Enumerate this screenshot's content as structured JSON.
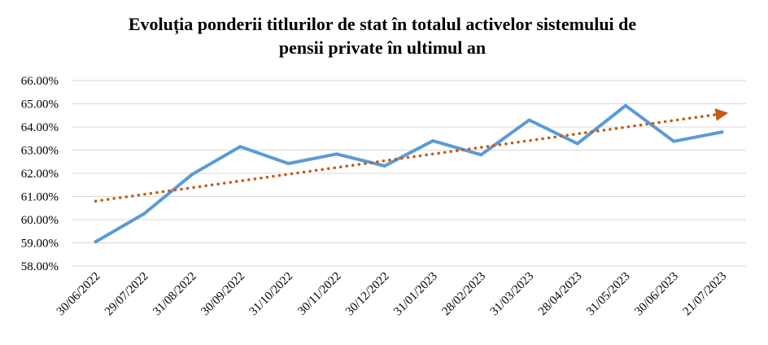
{
  "chart_data": {
    "type": "line",
    "title": "Evoluția ponderii titlurilor de stat în totalul activelor sistemului de\npensii private în ultimul an",
    "xlabel": "",
    "ylabel": "",
    "categories": [
      "30/06/2022",
      "29/07/2022",
      "31/08/2022",
      "30/09/2022",
      "31/10/2022",
      "30/11/2022",
      "30/12/2022",
      "31/01/2023",
      "28/02/2023",
      "31/03/2023",
      "28/04/2023",
      "31/05/2023",
      "30/06/2023",
      "21/07/2023"
    ],
    "series": [
      {
        "values": [
          59.05,
          60.25,
          61.95,
          63.15,
          62.42,
          62.83,
          62.32,
          63.4,
          62.8,
          64.3,
          63.28,
          64.92,
          63.38,
          63.78
        ],
        "color": "#5b9bd5",
        "style": "solid"
      },
      {
        "values": [
          60.8,
          61.09,
          61.38,
          61.67,
          61.96,
          62.25,
          62.54,
          62.83,
          63.12,
          63.41,
          63.7,
          63.99,
          64.28,
          64.57
        ],
        "color": "#c55a11",
        "style": "dotted-trendline-with-arrow"
      }
    ],
    "ylim": [
      58,
      66
    ],
    "y_ticks": [
      "58.00%",
      "59.00%",
      "60.00%",
      "61.00%",
      "62.00%",
      "63.00%",
      "64.00%",
      "65.00%",
      "66.00%"
    ],
    "grid": true,
    "legend": "none"
  }
}
